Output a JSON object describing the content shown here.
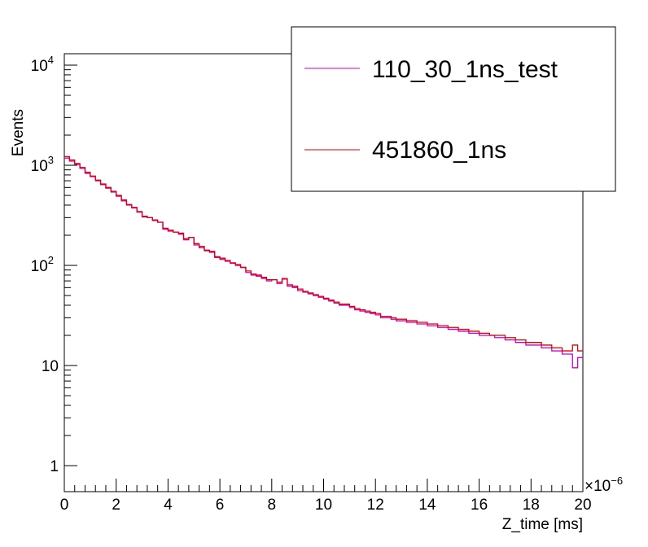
{
  "chart_data": {
    "type": "line",
    "style": "histogram-step",
    "title": "",
    "xlabel": "Z_time [ms]",
    "ylabel": "Events",
    "x_exponent_label": "×10",
    "x_exponent_power": "−6",
    "xlim": [
      0,
      20
    ],
    "ylim": [
      0.55,
      13000
    ],
    "yscale": "log",
    "grid": false,
    "legend_position": "top-right",
    "x_ticks": [
      {
        "value": 0,
        "label": "0"
      },
      {
        "value": 2,
        "label": "2"
      },
      {
        "value": 4,
        "label": "4"
      },
      {
        "value": 6,
        "label": "6"
      },
      {
        "value": 8,
        "label": "8"
      },
      {
        "value": 10,
        "label": "10"
      },
      {
        "value": 12,
        "label": "12"
      },
      {
        "value": 14,
        "label": "14"
      },
      {
        "value": 16,
        "label": "16"
      },
      {
        "value": 18,
        "label": "18"
      },
      {
        "value": 20,
        "label": "20"
      }
    ],
    "y_ticks": [
      {
        "value": 1,
        "base": "1",
        "exp": ""
      },
      {
        "value": 10,
        "base": "10",
        "exp": ""
      },
      {
        "value": 100,
        "base": "10",
        "exp": "2"
      },
      {
        "value": 1000,
        "base": "10",
        "exp": "3"
      },
      {
        "value": 10000,
        "base": "10",
        "exp": "4"
      }
    ],
    "bin_width": 0.2,
    "series": [
      {
        "name": "110_30_1ns_test",
        "color": "#cc00cc",
        "values": [
          1180,
          1100,
          1020,
          930,
          830,
          770,
          700,
          640,
          590,
          540,
          490,
          440,
          400,
          375,
          340,
          305,
          300,
          280,
          270,
          230,
          220,
          215,
          205,
          180,
          190,
          160,
          150,
          140,
          135,
          120,
          115,
          110,
          105,
          100,
          95,
          85,
          80,
          78,
          74,
          70,
          72,
          66,
          74,
          62,
          60,
          56,
          54,
          52,
          50,
          48,
          46,
          44,
          42,
          40,
          40,
          38,
          36,
          35,
          34,
          33,
          32,
          30,
          30,
          29,
          28,
          28,
          27,
          27,
          26,
          26,
          25,
          25,
          24,
          24,
          23,
          23,
          22,
          22,
          21,
          21,
          20,
          20,
          20,
          19,
          19,
          18,
          18,
          17,
          17,
          16,
          16,
          16,
          15,
          15,
          14,
          14,
          13,
          13,
          9.5,
          12
        ]
      },
      {
        "name": "451860_1ns",
        "color": "#dd0000",
        "values": [
          1220,
          1130,
          1040,
          950,
          850,
          780,
          710,
          650,
          600,
          550,
          500,
          450,
          405,
          380,
          345,
          310,
          300,
          285,
          270,
          235,
          225,
          215,
          210,
          185,
          190,
          165,
          155,
          142,
          138,
          122,
          118,
          112,
          106,
          102,
          96,
          88,
          82,
          80,
          76,
          72,
          72,
          68,
          73,
          64,
          62,
          58,
          55,
          53,
          51,
          49,
          47,
          45,
          43,
          41,
          41,
          39,
          37,
          36,
          35,
          34,
          33,
          31,
          31,
          30,
          29,
          29,
          28,
          28,
          27,
          27,
          26,
          26,
          25,
          25,
          24,
          24,
          23,
          23,
          22,
          22,
          21,
          21,
          20,
          20,
          20,
          19,
          19,
          18,
          18,
          17,
          17,
          17,
          16,
          16,
          15,
          15,
          14,
          14,
          16,
          14
        ]
      }
    ]
  }
}
